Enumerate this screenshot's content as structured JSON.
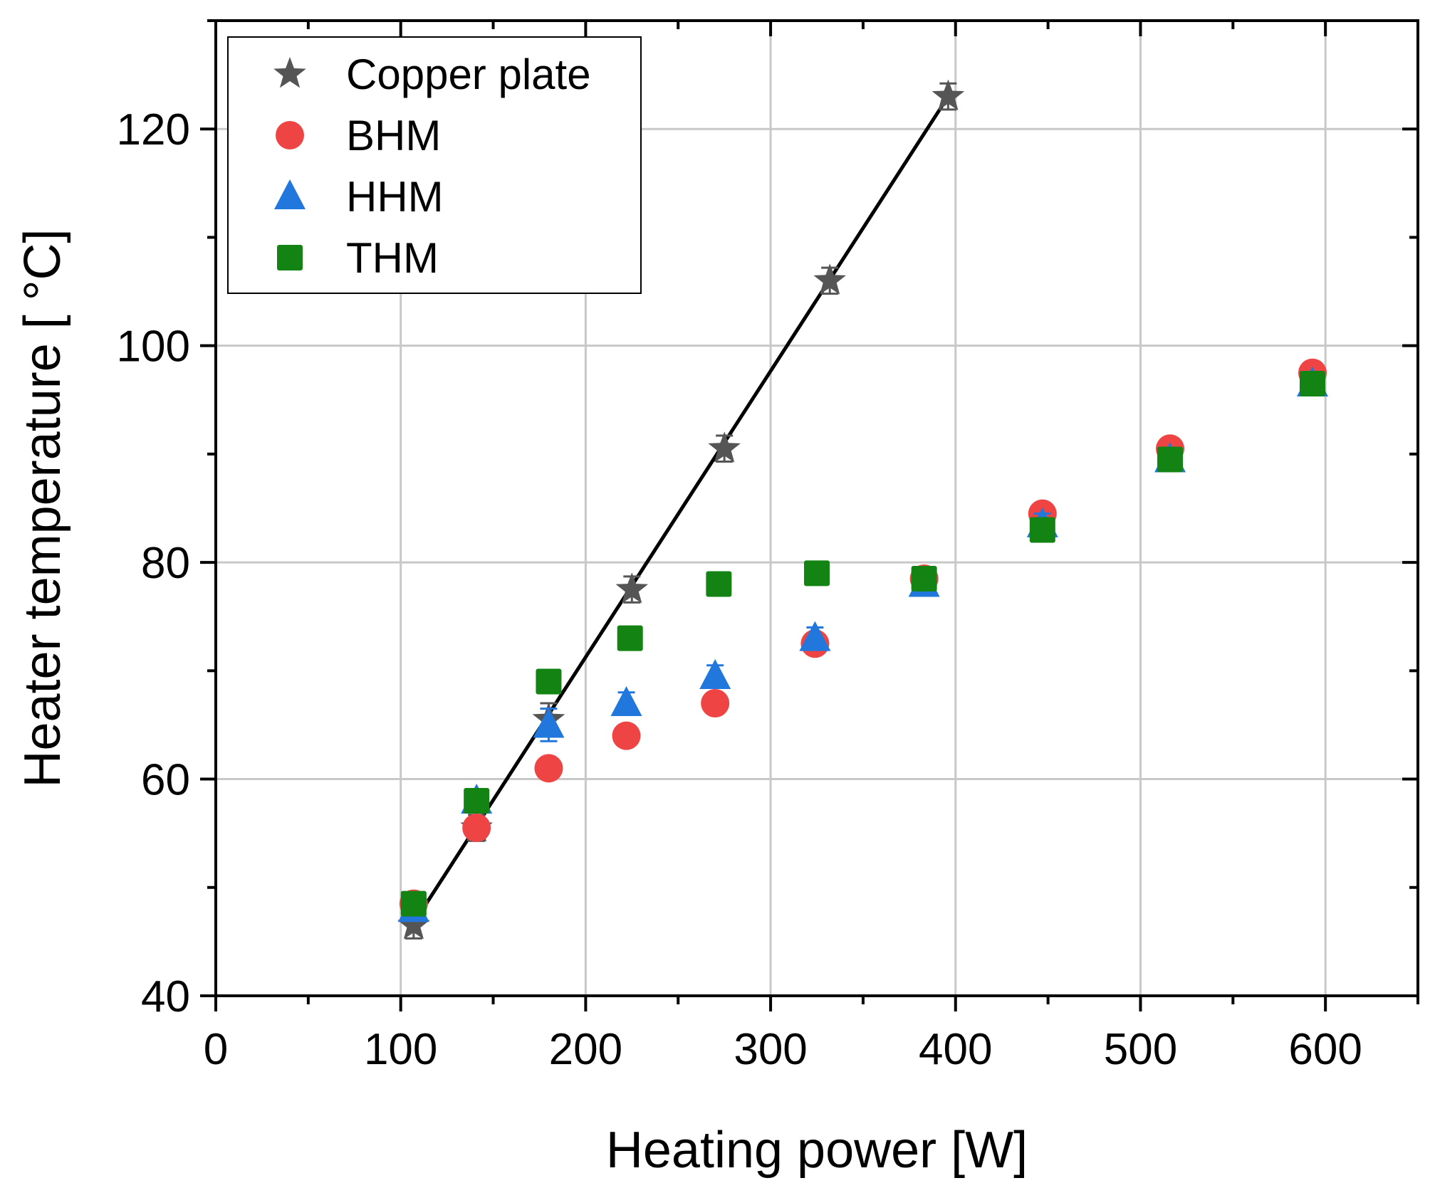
{
  "chart_data": {
    "type": "scatter",
    "title": "",
    "xlabel": "Heating power [W]",
    "ylabel": "Heater temperature [ °C]",
    "xlim": [
      0,
      650
    ],
    "ylim": [
      40,
      130
    ],
    "xticks": [
      0,
      100,
      200,
      300,
      400,
      500,
      600
    ],
    "yticks": [
      40,
      60,
      80,
      100,
      120
    ],
    "grid": true,
    "legend_position": "top-left",
    "series": [
      {
        "name": "Copper plate",
        "marker": "star",
        "color": "#555555",
        "x": [
          107,
          141,
          180,
          225,
          275,
          332,
          396
        ],
        "y": [
          46.5,
          55.5,
          65.5,
          77.5,
          90.5,
          106,
          123
        ],
        "err": [
          1.2,
          1.2,
          1.5,
          1.2,
          1.2,
          1.2,
          1.2
        ]
      },
      {
        "name": "BHM",
        "marker": "circle",
        "color": "#ee4444",
        "x": [
          107,
          141,
          180,
          222,
          270,
          324,
          383,
          447,
          516,
          593
        ],
        "y": [
          48.5,
          55.5,
          61,
          64,
          67,
          72.5,
          78.5,
          84.5,
          90.5,
          97.5
        ],
        "err": [
          0.8,
          0.8,
          0.8,
          0.8,
          0.8,
          0.8,
          0.8,
          0.8,
          0.8,
          0.8
        ]
      },
      {
        "name": "HHM",
        "marker": "triangle",
        "color": "#2277dd",
        "x": [
          107,
          141,
          180,
          222,
          270,
          324,
          383,
          447,
          516,
          593
        ],
        "y": [
          48,
          58,
          65,
          67,
          69.5,
          73,
          78,
          83.5,
          89.5,
          96.5
        ],
        "err": [
          1,
          1,
          1.5,
          1,
          1,
          1,
          1,
          1,
          1,
          1
        ]
      },
      {
        "name": "THM",
        "marker": "square",
        "color": "#138413",
        "x": [
          107,
          141,
          180,
          224,
          272,
          325,
          383,
          447,
          516,
          593
        ],
        "y": [
          48.5,
          58,
          69,
          73,
          78,
          79,
          78.5,
          83,
          89.5,
          96.5
        ],
        "err": [
          0.9,
          0.9,
          0.9,
          0.9,
          0.9,
          0.9,
          0.9,
          0.9,
          0.9,
          0.9
        ]
      }
    ],
    "fit_line": {
      "series": "Copper plate",
      "x": [
        110,
        396
      ],
      "y": [
        47.5,
        123
      ]
    }
  }
}
